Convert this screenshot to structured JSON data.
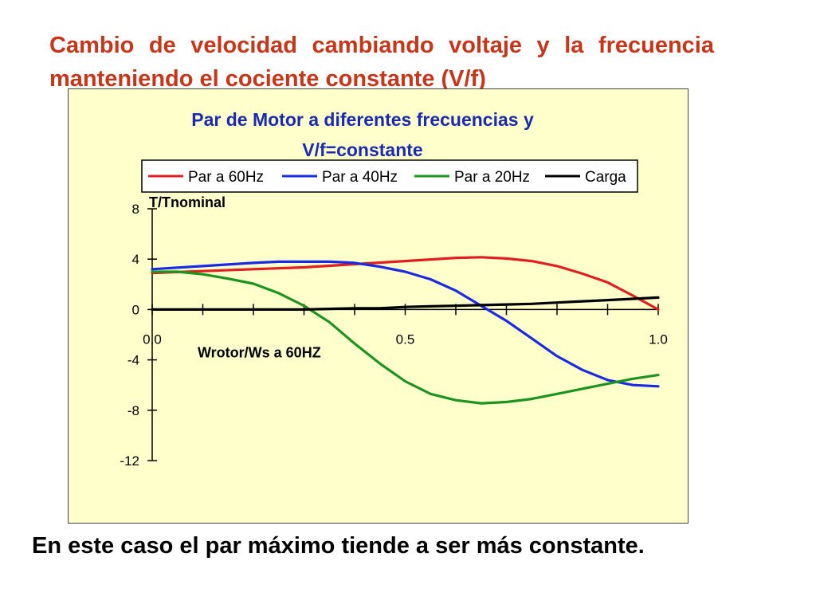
{
  "slide": {
    "title": "Cambio de velocidad cambiando voltaje y la frecuencia manteniendo el cociente constante (V/f)",
    "caption": "En este caso el par máximo tiende a ser más constante."
  },
  "chart_data": {
    "type": "line",
    "title_lines": [
      "Par de Motor a diferentes frecuencias y",
      "V/f=constante"
    ],
    "xlabel": "Wrotor/Ws a 60HZ",
    "ylabel": "T/Tnominal",
    "xlim": [
      0,
      1
    ],
    "ylim": [
      -12,
      8
    ],
    "x_ticks": [
      0.0,
      0.5,
      1.0
    ],
    "x_tick_labels": [
      "0.0",
      "0.5",
      "1.0"
    ],
    "y_ticks": [
      8,
      4,
      0,
      -4,
      -8,
      -12
    ],
    "y_tick_labels": [
      "8",
      "4",
      "0",
      "-4",
      "-8",
      "-12"
    ],
    "legend_position": "top",
    "grid": false,
    "series": [
      {
        "name": "Par a 60Hz",
        "color": "#e02020",
        "x": [
          0,
          0.1,
          0.2,
          0.3,
          0.4,
          0.5,
          0.6,
          0.65,
          0.7,
          0.75,
          0.8,
          0.85,
          0.9,
          0.95,
          1.0
        ],
        "y": [
          2.9,
          3.05,
          3.2,
          3.35,
          3.6,
          3.85,
          4.1,
          4.15,
          4.05,
          3.85,
          3.45,
          2.85,
          2.15,
          1.1,
          0
        ]
      },
      {
        "name": "Par a 40Hz",
        "color": "#1a2be0",
        "x": [
          0,
          0.1,
          0.2,
          0.25,
          0.3,
          0.35,
          0.4,
          0.45,
          0.5,
          0.55,
          0.6,
          0.65,
          0.7,
          0.75,
          0.8,
          0.85,
          0.9,
          0.95,
          1.0
        ],
        "y": [
          3.2,
          3.45,
          3.7,
          3.8,
          3.8,
          3.8,
          3.7,
          3.4,
          3.0,
          2.4,
          1.5,
          0.3,
          -0.9,
          -2.3,
          -3.7,
          -4.8,
          -5.6,
          -6.0,
          -6.1
        ]
      },
      {
        "name": "Par a 20Hz",
        "color": "#1e9420",
        "x": [
          0,
          0.05,
          0.1,
          0.15,
          0.2,
          0.25,
          0.3,
          0.35,
          0.4,
          0.45,
          0.5,
          0.55,
          0.6,
          0.65,
          0.7,
          0.75,
          0.8,
          0.85,
          0.9,
          0.95,
          1.0
        ],
        "y": [
          3.0,
          3.0,
          2.8,
          2.45,
          2.05,
          1.3,
          0.3,
          -1.0,
          -2.7,
          -4.3,
          -5.7,
          -6.7,
          -7.2,
          -7.45,
          -7.35,
          -7.1,
          -6.7,
          -6.3,
          -5.9,
          -5.5,
          -5.2
        ]
      },
      {
        "name": "Carga",
        "color": "#000000",
        "x": [
          0,
          0.1,
          0.2,
          0.3,
          0.35,
          0.4,
          0.45,
          0.5,
          0.55,
          0.6,
          0.65,
          0.7,
          0.75,
          0.8,
          0.85,
          0.9,
          0.95,
          1.0
        ],
        "y": [
          0,
          0,
          0,
          0,
          0.05,
          0.1,
          0.1,
          0.2,
          0.25,
          0.3,
          0.35,
          0.4,
          0.45,
          0.55,
          0.65,
          0.75,
          0.85,
          0.95
        ]
      }
    ]
  }
}
